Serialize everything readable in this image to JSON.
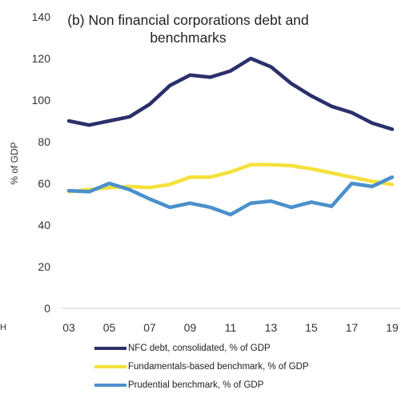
{
  "chart_data": {
    "type": "line",
    "title": "(b) Non financial corporations debt and benchmarks",
    "ylabel": "% of GDP",
    "xlabel": "",
    "ylim": [
      0,
      140
    ],
    "yticks": [
      "0",
      "20",
      "40",
      "60",
      "80",
      "100",
      "120",
      "140"
    ],
    "x": [
      2003,
      2004,
      2005,
      2006,
      2007,
      2008,
      2009,
      2010,
      2011,
      2012,
      2013,
      2014,
      2015,
      2016,
      2017,
      2018,
      2019
    ],
    "xtick_labels": [
      "03",
      "05",
      "07",
      "09",
      "11",
      "13",
      "15",
      "17",
      "19"
    ],
    "grid": false,
    "legend_position": "bottom",
    "series": [
      {
        "name": "NFC debt, consolidated,  % of GDP",
        "color": "#2b2f6b",
        "values": [
          90,
          88,
          90,
          92,
          98,
          107,
          112,
          111,
          114,
          120,
          116,
          108,
          102,
          97,
          94,
          89,
          86
        ]
      },
      {
        "name": "Fundamentals-based benchmark, % of GDP",
        "color": "#f5e03c",
        "values": [
          56,
          57,
          58,
          58.5,
          58,
          59.5,
          63,
          63,
          65.5,
          69,
          69,
          68.5,
          67,
          65,
          63,
          61,
          59.5
        ]
      },
      {
        "name": "Prudential benchmark, % of GDP",
        "color": "#4a90cc",
        "values": [
          56.5,
          56,
          60,
          57,
          52.5,
          48.5,
          50.5,
          48.5,
          45,
          50.5,
          51.5,
          48.5,
          51,
          49,
          60,
          58.5,
          63
        ]
      }
    ]
  },
  "stray_label": "H"
}
